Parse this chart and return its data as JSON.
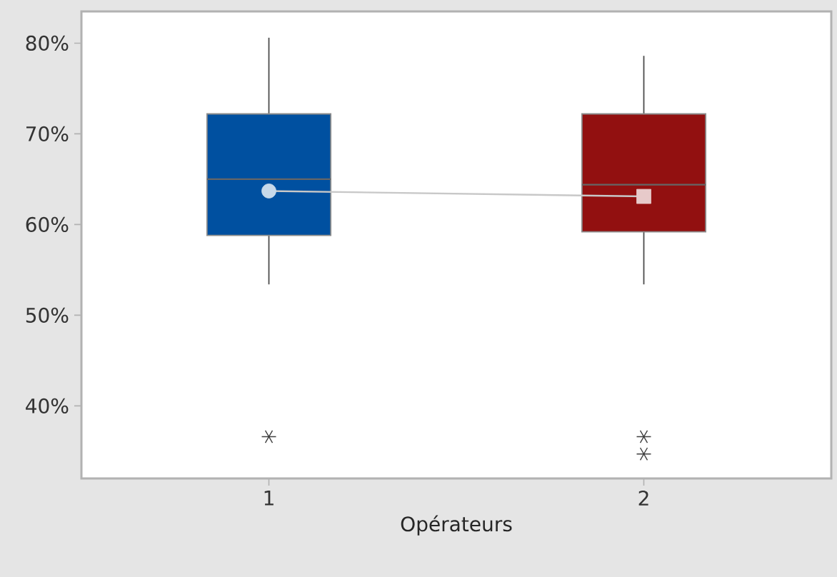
{
  "chart_data": {
    "type": "box",
    "xlabel": "Opérateurs",
    "categories": [
      "1",
      "2"
    ],
    "colors": [
      "#0050a0",
      "#921010"
    ],
    "boxes": [
      {
        "low": 53.4,
        "q1": 58.8,
        "median": 65.0,
        "q3": 72.2,
        "high": 80.6,
        "outliers": [
          36.6
        ]
      },
      {
        "low": 53.4,
        "q1": 59.2,
        "median": 64.4,
        "q3": 72.2,
        "high": 78.6,
        "outliers": [
          36.6,
          34.7
        ]
      }
    ],
    "series": [
      {
        "type": "line",
        "color": "#c8c8c8",
        "marker": "circle",
        "values": [
          63.7,
          63.1
        ]
      }
    ],
    "ylim": [
      32.0,
      83.5
    ],
    "yticks": [
      {
        "value": 40,
        "label": "40%"
      },
      {
        "value": 50,
        "label": "50%"
      },
      {
        "value": 60,
        "label": "60%"
      },
      {
        "value": 70,
        "label": "70%"
      },
      {
        "value": 80,
        "label": "80%"
      }
    ]
  }
}
